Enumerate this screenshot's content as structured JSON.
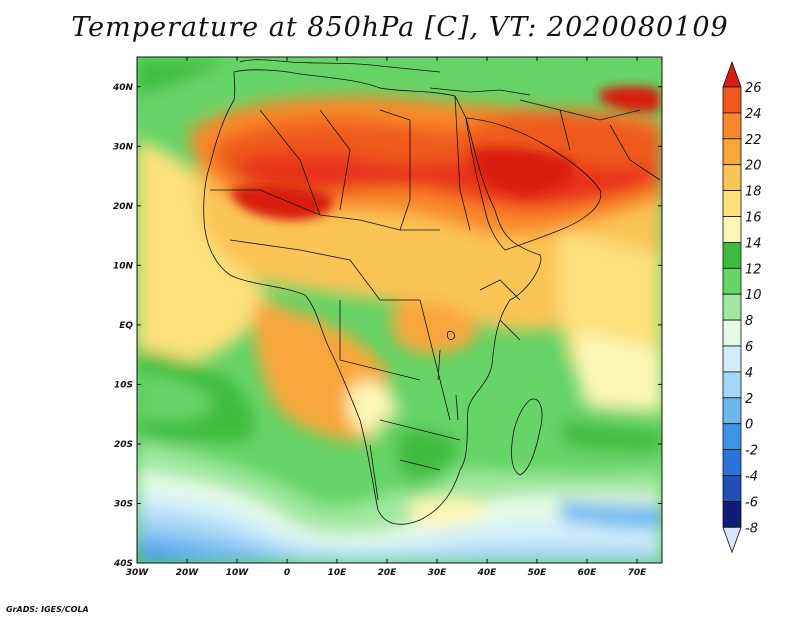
{
  "title": "Temperature at 850hPa [C], VT: 2020080109",
  "credit": "GrADS: IGES/COLA",
  "map": {
    "lon_range": [
      -30,
      75
    ],
    "lat_range": [
      -40,
      45
    ],
    "lon_ticks": [
      {
        "value": -30,
        "label": "30W"
      },
      {
        "value": -20,
        "label": "20W"
      },
      {
        "value": -10,
        "label": "10W"
      },
      {
        "value": 0,
        "label": "0"
      },
      {
        "value": 10,
        "label": "10E"
      },
      {
        "value": 20,
        "label": "20E"
      },
      {
        "value": 30,
        "label": "30E"
      },
      {
        "value": 40,
        "label": "40E"
      },
      {
        "value": 50,
        "label": "50E"
      },
      {
        "value": 60,
        "label": "60E"
      },
      {
        "value": 70,
        "label": "70E"
      }
    ],
    "lat_ticks": [
      {
        "value": 40,
        "label": "40N"
      },
      {
        "value": 30,
        "label": "30N"
      },
      {
        "value": 20,
        "label": "20N"
      },
      {
        "value": 10,
        "label": "10N"
      },
      {
        "value": 0,
        "label": "EQ"
      },
      {
        "value": -10,
        "label": "10S"
      },
      {
        "value": -20,
        "label": "20S"
      },
      {
        "value": -30,
        "label": "30S"
      },
      {
        "value": -40,
        "label": "40S"
      }
    ]
  },
  "colorbar": {
    "levels": [
      "26",
      "24",
      "22",
      "20",
      "18",
      "16",
      "14",
      "12",
      "10",
      "8",
      "6",
      "4",
      "2",
      "0",
      "-2",
      "-4",
      "-6",
      "-8"
    ],
    "colors": [
      "#e8331a",
      "#f05a1e",
      "#f8882c",
      "#f8a63a",
      "#fac456",
      "#fce07c",
      "#fcf6b4",
      "#3cbc3c",
      "#66d466",
      "#9fe89f",
      "#e6fae6",
      "#cfeefa",
      "#a4d6f6",
      "#6eb8f0",
      "#3c94e6",
      "#2872d8",
      "#1e50b8",
      "#101c78",
      "#dce6fc"
    ],
    "top_color": "#d81e10",
    "bottom_color": "#dce6fc"
  }
}
